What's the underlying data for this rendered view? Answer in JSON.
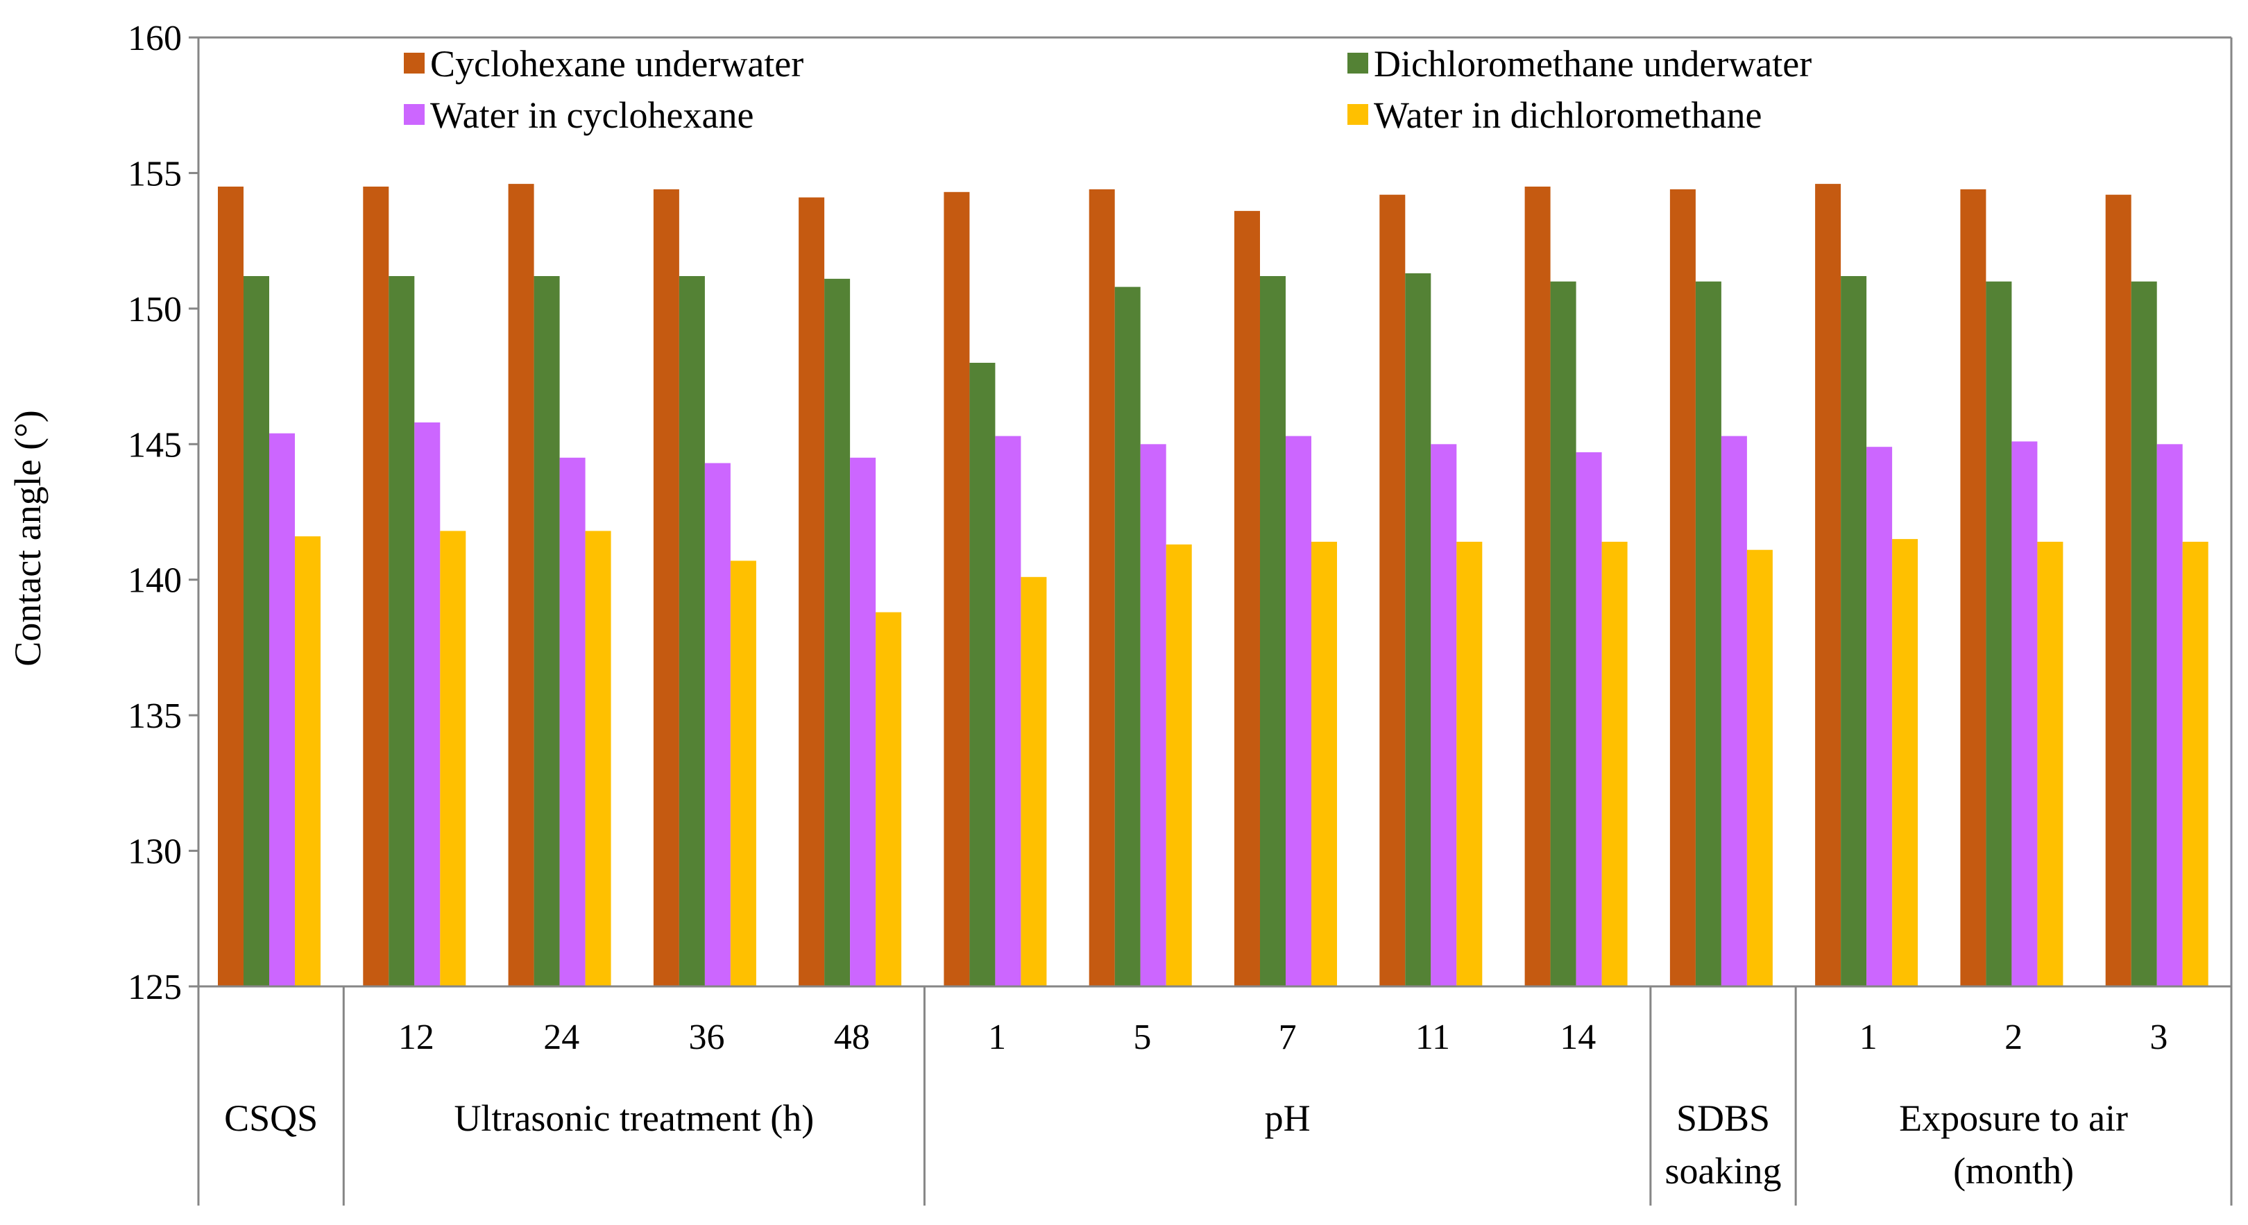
{
  "chart_data": {
    "type": "bar",
    "title": "",
    "xlabel": "",
    "ylabel": "Contact angle (°)",
    "ylim": [
      125,
      160
    ],
    "yticks": [
      125,
      130,
      135,
      140,
      145,
      150,
      155,
      160
    ],
    "grid": false,
    "legend_position": "top",
    "categories": [
      "",
      "12",
      "24",
      "36",
      "48",
      "1",
      "5",
      "7",
      "11",
      "14",
      "",
      "1",
      "2",
      "3"
    ],
    "groups": [
      {
        "label_lines": [
          "CSQS"
        ],
        "start": 0,
        "count": 1
      },
      {
        "label_lines": [
          "Ultrasonic treatment (h)"
        ],
        "start": 1,
        "count": 4
      },
      {
        "label_lines": [
          "pH"
        ],
        "start": 5,
        "count": 5
      },
      {
        "label_lines": [
          "SDBS",
          "soaking"
        ],
        "start": 10,
        "count": 1
      },
      {
        "label_lines": [
          "Exposure to air",
          "(month)"
        ],
        "start": 11,
        "count": 3
      }
    ],
    "series": [
      {
        "name": "Cyclohexane underwater",
        "color": "#c55a11",
        "values": [
          154.5,
          154.5,
          154.6,
          154.4,
          154.1,
          154.3,
          154.4,
          153.6,
          154.2,
          154.5,
          154.4,
          154.6,
          154.4,
          154.2
        ]
      },
      {
        "name": "Dichloromethane underwater",
        "color": "#548235",
        "values": [
          151.2,
          151.2,
          151.2,
          151.2,
          151.1,
          148.0,
          150.8,
          151.2,
          151.3,
          151.0,
          151.0,
          151.2,
          151.0,
          151.0
        ]
      },
      {
        "name": "Water in cyclohexane",
        "color": "#cc66ff",
        "values": [
          145.4,
          145.8,
          144.5,
          144.3,
          144.5,
          145.3,
          145.0,
          145.3,
          145.0,
          144.7,
          145.3,
          144.9,
          145.1,
          145.0
        ]
      },
      {
        "name": "Water in dichloromethane",
        "color": "#ffc000",
        "values": [
          141.6,
          141.8,
          141.8,
          140.7,
          138.8,
          140.1,
          141.3,
          141.4,
          141.4,
          141.4,
          141.1,
          141.5,
          141.4,
          141.4
        ]
      }
    ]
  }
}
